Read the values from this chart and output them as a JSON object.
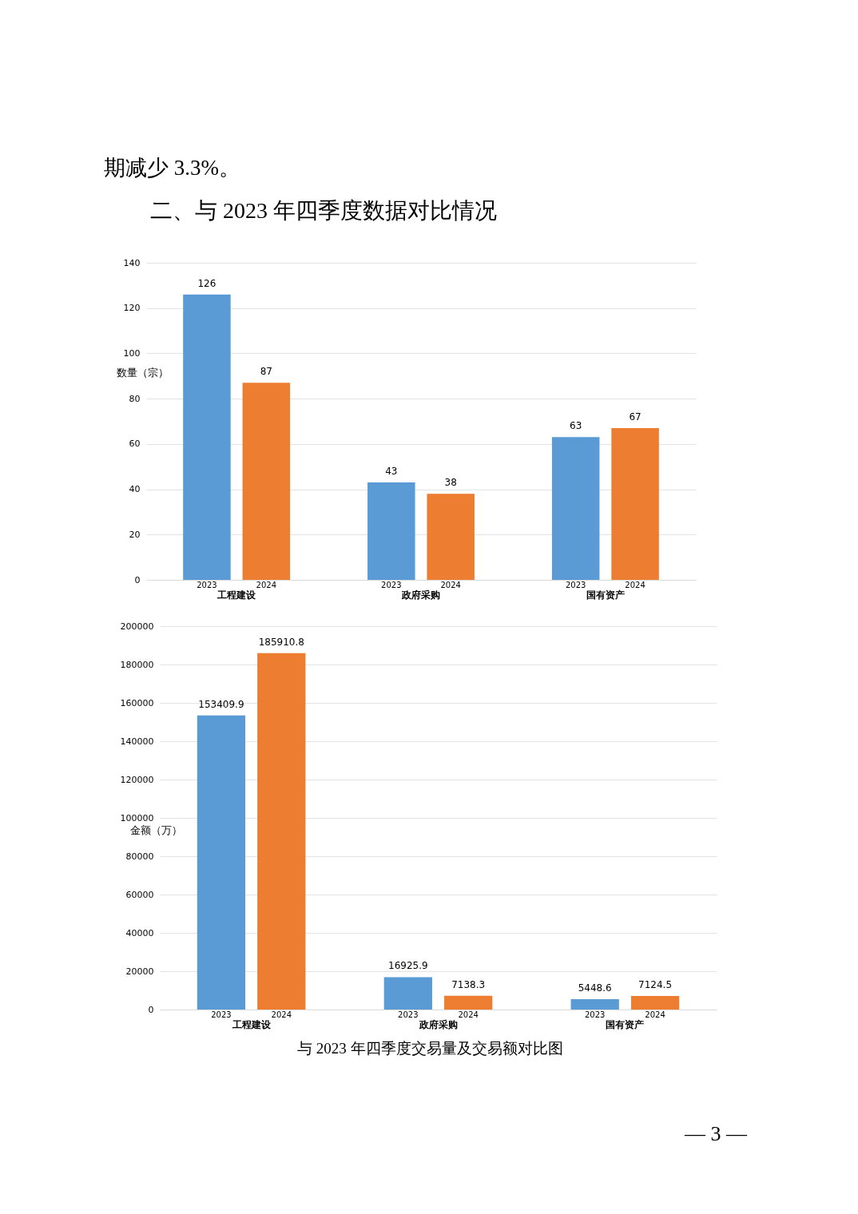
{
  "chart_data": [
    {
      "type": "bar",
      "annotations": [
        "期减少 3.3%。",
        "二、与 2023 年四季度数据对比情况"
      ],
      "ylabel": "数量（宗）",
      "categories": [
        "工程建设",
        "政府采购",
        "国有资产"
      ],
      "series": [
        {
          "name": "2023",
          "color": "#5b9bd5",
          "values": [
            126,
            43,
            63
          ]
        },
        {
          "name": "2024",
          "color": "#ed7d31",
          "values": [
            87,
            38,
            67
          ]
        }
      ],
      "ylim": [
        0,
        140
      ],
      "yticks": [
        0,
        20,
        40,
        60,
        80,
        100,
        120,
        140
      ],
      "grid": "y",
      "data_labels": true
    },
    {
      "type": "bar",
      "annotations": [
        "与 2023 年四季度交易量及交易额对比图",
        "— 3 —"
      ],
      "ylabel": "金额（万）",
      "categories": [
        "工程建设",
        "政府采购",
        "国有资产"
      ],
      "series": [
        {
          "name": "2023",
          "color": "#5b9bd5",
          "values": [
            153409.9,
            16925.9,
            5448.6
          ]
        },
        {
          "name": "2024",
          "color": "#ed7d31",
          "values": [
            185910.8,
            7138.3,
            7124.5
          ]
        }
      ],
      "ylim": [
        0,
        200000
      ],
      "yticks": [
        0,
        20000,
        40000,
        60000,
        80000,
        100000,
        120000,
        140000,
        160000,
        180000,
        200000
      ],
      "grid": "y",
      "data_labels": true
    }
  ]
}
